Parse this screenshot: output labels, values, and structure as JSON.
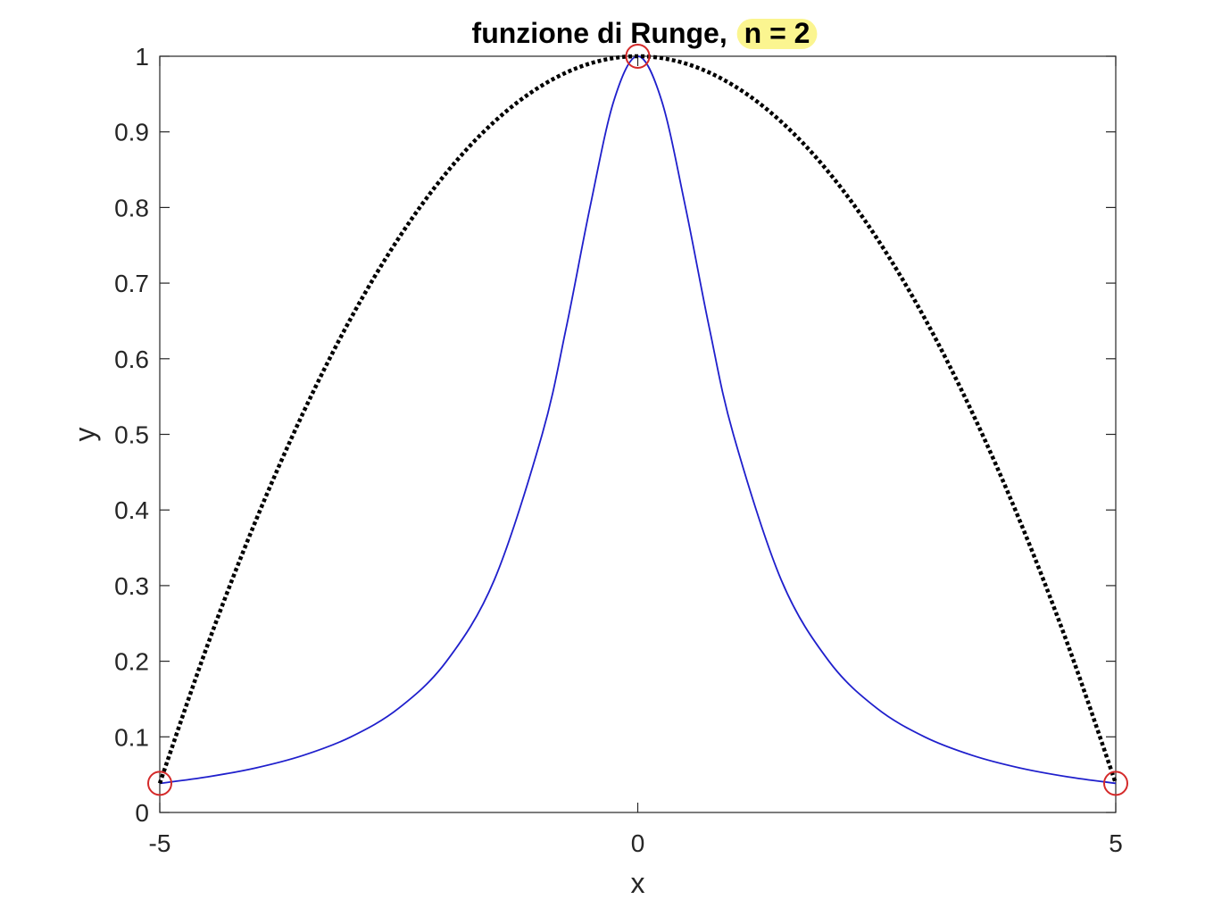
{
  "chart_data": {
    "type": "line",
    "title": "funzione di Runge,",
    "title_highlight": "n = 2",
    "xlabel": "x",
    "ylabel": "y",
    "xlim": [
      -5,
      5
    ],
    "ylim": [
      0,
      1
    ],
    "xticks": [
      -5,
      0,
      5
    ],
    "xtick_labels": [
      "-5",
      "0",
      "5"
    ],
    "yticks": [
      0,
      0.1,
      0.2,
      0.3,
      0.4,
      0.5,
      0.6,
      0.7,
      0.8,
      0.9,
      1
    ],
    "ytick_labels": [
      "0",
      "0.1",
      "0.2",
      "0.3",
      "0.4",
      "0.5",
      "0.6",
      "0.7",
      "0.8",
      "0.9",
      "1"
    ],
    "grid": false,
    "series": [
      {
        "style": "solid",
        "color": "#1f1fcc",
        "x": [
          -5,
          -4.5,
          -4,
          -3.5,
          -3,
          -2.5,
          -2,
          -1.5,
          -1,
          -0.75,
          -0.5,
          -0.25,
          0,
          0.25,
          0.5,
          0.75,
          1,
          1.5,
          2,
          2.5,
          3,
          3.5,
          4,
          4.5,
          5
        ],
        "y": [
          0.0385,
          0.0471,
          0.0588,
          0.0755,
          0.1,
          0.1379,
          0.2,
          0.3077,
          0.5,
          0.64,
          0.8,
          0.9412,
          1,
          0.9412,
          0.8,
          0.64,
          0.5,
          0.3077,
          0.2,
          0.1379,
          0.1,
          0.0755,
          0.0588,
          0.0471,
          0.0385
        ]
      },
      {
        "style": "dotted",
        "color": "#000000",
        "x": [
          -5,
          -4.5,
          -4,
          -3.5,
          -3,
          -2.5,
          -2,
          -1.5,
          -1,
          -0.5,
          0,
          0.5,
          1,
          1.5,
          2,
          2.5,
          3,
          3.5,
          4,
          4.5,
          5
        ],
        "y": [
          0.0385,
          0.2215,
          0.3846,
          0.5285,
          0.6538,
          0.7596,
          0.8462,
          0.9135,
          0.9615,
          0.9904,
          1,
          0.9904,
          0.9615,
          0.9135,
          0.8462,
          0.7596,
          0.6538,
          0.5285,
          0.3846,
          0.2215,
          0.0385
        ]
      },
      {
        "style": "markers",
        "marker": "circle",
        "color": "#d42a2a",
        "x": [
          -5,
          0,
          5
        ],
        "y": [
          0.0385,
          1,
          0.0385
        ]
      }
    ],
    "highlight_color": "#fbf590"
  }
}
